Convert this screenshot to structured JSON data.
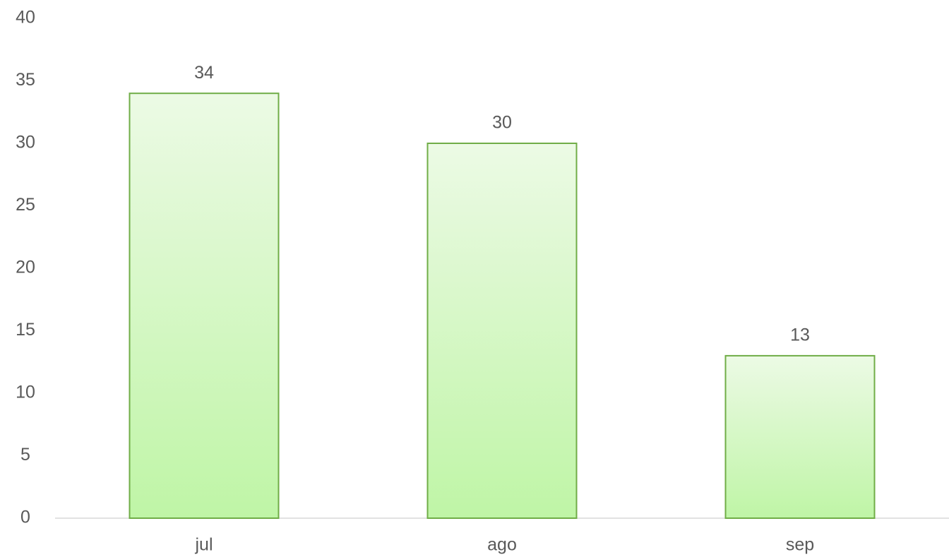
{
  "chart_data": {
    "type": "bar",
    "categories": [
      "jul",
      "ago",
      "sep"
    ],
    "values": [
      34,
      30,
      13
    ],
    "color": "#70ad47",
    "ylim": [
      0,
      40
    ],
    "yticks": [
      0,
      5,
      10,
      15,
      20,
      25,
      30,
      35,
      40
    ],
    "grid": false
  }
}
